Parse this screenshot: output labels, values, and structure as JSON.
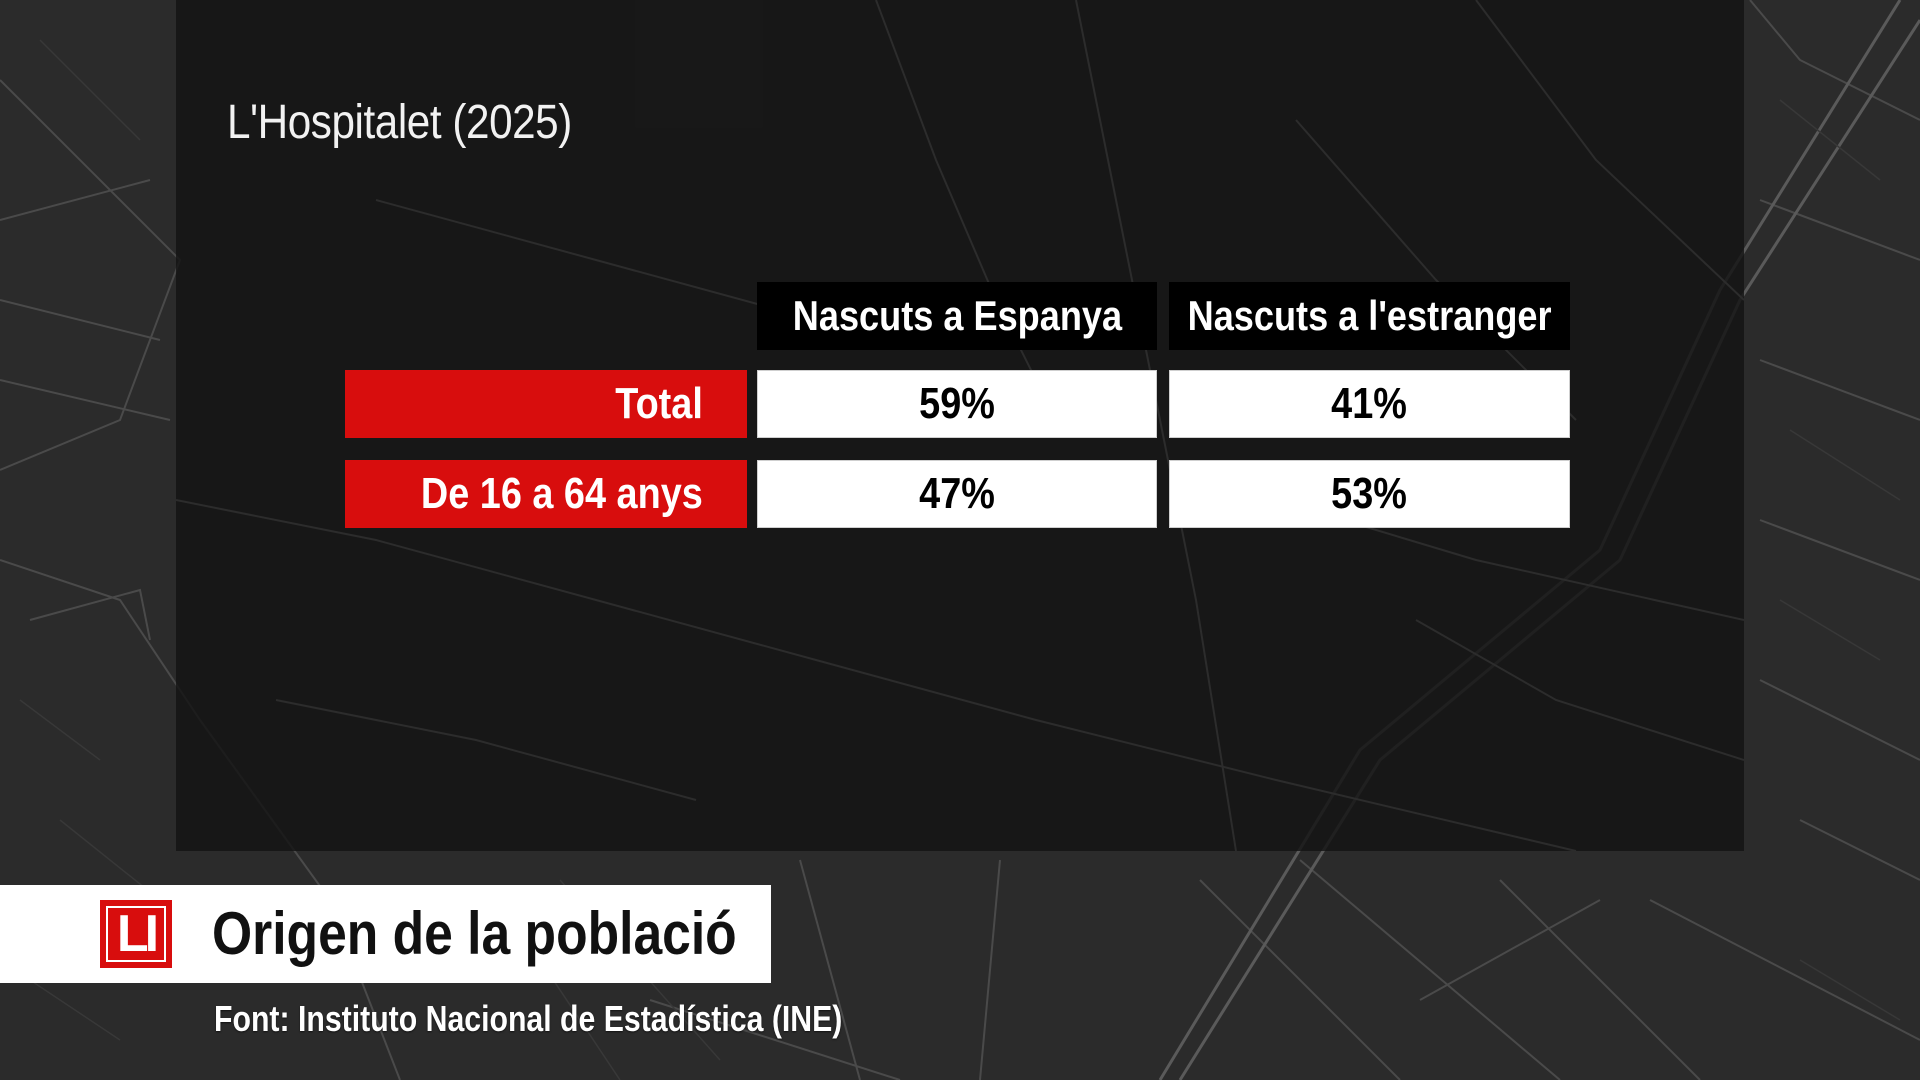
{
  "graphic": {
    "subtitle": "L'Hospitalet (2025)",
    "title": "Origen de la població",
    "source": "Font: Instituto Nacional de Estadística (INE)",
    "logo_text": "LI"
  },
  "table": {
    "columns": [
      "Nascuts a Espanya",
      "Nascuts a l'estranger"
    ],
    "rows": [
      {
        "label": "Total",
        "values": [
          "59%",
          "41%"
        ]
      },
      {
        "label": "De 16 a 64 anys",
        "values": [
          "47%",
          "53%"
        ]
      }
    ]
  },
  "colors": {
    "accent_red": "#d80d0d",
    "panel": "#141414",
    "cell_bg": "#ffffff",
    "header_bg": "#000000"
  },
  "background": {
    "description_icon": "street-map-background"
  }
}
